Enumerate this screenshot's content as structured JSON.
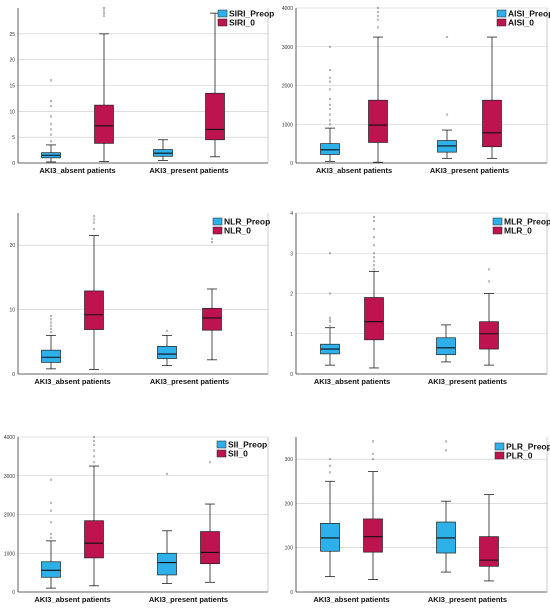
{
  "colors": {
    "preop": "#2eb0ea",
    "post": "#bd1450"
  },
  "chart_data": [
    {
      "type": "box",
      "legend": [
        "SIRI_Preop",
        "SIRI_0"
      ],
      "categories": [
        "AKI3_absent patients",
        "AKI3_present patients"
      ],
      "ylim": [
        0,
        30
      ],
      "yticks": [
        0,
        5,
        10,
        15,
        20,
        25
      ],
      "yticklabels": [
        "0",
        "5",
        "10",
        "15",
        "20",
        "25"
      ],
      "grid": true,
      "legend_position": "top-right",
      "boxes": [
        {
          "q1": 1.0,
          "median": 1.5,
          "q3": 2.0,
          "lo": 0.2,
          "hi": 3.5,
          "out": [
            4.2,
            5.5,
            6.5,
            7.5,
            9.0,
            11.0,
            12.0,
            16.0
          ]
        },
        {
          "q1": 3.8,
          "median": 7.2,
          "q3": 11.2,
          "lo": 0.3,
          "hi": 25.0,
          "out": [
            28.5,
            29.0,
            29.5,
            30.0
          ]
        },
        {
          "q1": 1.3,
          "median": 1.9,
          "q3": 2.6,
          "lo": 0.5,
          "hi": 4.5,
          "out": []
        },
        {
          "q1": 4.5,
          "median": 6.5,
          "q3": 13.5,
          "lo": 1.2,
          "hi": 29.0,
          "out": []
        }
      ]
    },
    {
      "type": "box",
      "legend": [
        "AISI_Preop",
        "AISI_0"
      ],
      "categories": [
        "AKI3_absent patients",
        "AKI3_present patients"
      ],
      "ylim": [
        0,
        4000
      ],
      "yticks": [
        0,
        1000,
        2000,
        3000,
        4000
      ],
      "yticklabels": [
        "0",
        "1000",
        "2000",
        "3000",
        "4000"
      ],
      "grid": true,
      "legend_position": "top-right",
      "boxes": [
        {
          "q1": 220,
          "median": 340,
          "q3": 500,
          "lo": 40,
          "hi": 900,
          "out": [
            1000,
            1100,
            1250,
            1400,
            1500,
            1650,
            1900,
            2100,
            2200,
            2400,
            3000
          ]
        },
        {
          "q1": 530,
          "median": 980,
          "q3": 1620,
          "lo": 20,
          "hi": 3250,
          "out": [
            3500,
            3700,
            3800,
            3900,
            4000
          ]
        },
        {
          "q1": 280,
          "median": 440,
          "q3": 580,
          "lo": 120,
          "hi": 850,
          "out": [
            1250,
            3250
          ]
        },
        {
          "q1": 420,
          "median": 780,
          "q3": 1620,
          "lo": 120,
          "hi": 3250,
          "out": []
        }
      ]
    },
    {
      "type": "box",
      "legend": [
        "NLR_Preop",
        "NLR_0"
      ],
      "categories": [
        "AKI3_absent patients",
        "AKI3_present patients"
      ],
      "ylim": [
        0,
        25
      ],
      "yticks": [
        0,
        10,
        20
      ],
      "yticklabels": [
        "0",
        "10",
        "20"
      ],
      "grid": true,
      "legend_position": "top-right",
      "boxes": [
        {
          "q1": 1.8,
          "median": 2.6,
          "q3": 3.7,
          "lo": 0.8,
          "hi": 6.0,
          "out": [
            6.5,
            7.0,
            7.5,
            8.0,
            8.5,
            9.0
          ]
        },
        {
          "q1": 6.9,
          "median": 9.2,
          "q3": 12.9,
          "lo": 0.7,
          "hi": 21.5,
          "out": [
            22.5,
            23.5,
            24.0,
            24.5
          ]
        },
        {
          "q1": 2.4,
          "median": 3.1,
          "q3": 4.3,
          "lo": 1.3,
          "hi": 6.0,
          "out": [
            6.7
          ]
        },
        {
          "q1": 6.8,
          "median": 8.7,
          "q3": 10.2,
          "lo": 2.2,
          "hi": 13.2,
          "out": [
            20.5,
            21.0
          ]
        }
      ]
    },
    {
      "type": "box",
      "legend": [
        "MLR_Preop",
        "MLR_0"
      ],
      "categories": [
        "AKI3_absent patients",
        "AKI3_present patients"
      ],
      "ylim": [
        0,
        4
      ],
      "yticks": [
        0,
        1,
        2,
        3,
        4
      ],
      "yticklabels": [
        "0",
        "1",
        "2",
        "3",
        "4"
      ],
      "grid": true,
      "legend_position": "top-right",
      "boxes": [
        {
          "q1": 0.5,
          "median": 0.62,
          "q3": 0.74,
          "lo": 0.22,
          "hi": 1.15,
          "out": [
            1.2,
            1.3,
            1.35,
            1.4,
            2.0,
            3.0
          ]
        },
        {
          "q1": 0.85,
          "median": 1.3,
          "q3": 1.9,
          "lo": 0.15,
          "hi": 2.55,
          "out": [
            2.6,
            2.7,
            2.8,
            2.9,
            3.0,
            3.2,
            3.4,
            3.6,
            3.8,
            3.9
          ]
        },
        {
          "q1": 0.48,
          "median": 0.65,
          "q3": 0.9,
          "lo": 0.3,
          "hi": 1.22,
          "out": []
        },
        {
          "q1": 0.62,
          "median": 1.0,
          "q3": 1.3,
          "lo": 0.22,
          "hi": 2.0,
          "out": [
            2.3,
            2.6
          ]
        }
      ]
    },
    {
      "type": "box",
      "legend": [
        "SII_Preop",
        "SII_0"
      ],
      "categories": [
        "AKI3_absent patients",
        "AKI3_present patients"
      ],
      "ylim": [
        0,
        4000
      ],
      "yticks": [
        0,
        1000,
        2000,
        3000,
        4000
      ],
      "yticklabels": [
        "0",
        "1000",
        "2000",
        "3000",
        "4000"
      ],
      "grid": true,
      "legend_position": "top-right",
      "boxes": [
        {
          "q1": 380,
          "median": 560,
          "q3": 780,
          "lo": 100,
          "hi": 1320,
          "out": [
            1400,
            1500,
            1800,
            2100,
            2300,
            2900
          ]
        },
        {
          "q1": 880,
          "median": 1260,
          "q3": 1840,
          "lo": 160,
          "hi": 3250,
          "out": [
            3350,
            3500,
            3650,
            3800,
            3900,
            4000
          ]
        },
        {
          "q1": 440,
          "median": 760,
          "q3": 1000,
          "lo": 220,
          "hi": 1580,
          "out": [
            3050
          ]
        },
        {
          "q1": 730,
          "median": 1020,
          "q3": 1560,
          "lo": 250,
          "hi": 2270,
          "out": [
            3350
          ]
        }
      ]
    },
    {
      "type": "box",
      "legend": [
        "PLR_Preop",
        "PLR_0"
      ],
      "categories": [
        "AKI3_absent patients",
        "AKI3_present patients"
      ],
      "ylim": [
        0,
        350
      ],
      "yticks": [
        0,
        100,
        200,
        300
      ],
      "yticklabels": [
        "0",
        "100",
        "200",
        "300"
      ],
      "grid": true,
      "legend_position": "top-right",
      "boxes": [
        {
          "q1": 92,
          "median": 122,
          "q3": 155,
          "lo": 35,
          "hi": 250,
          "out": [
            270,
            285,
            300
          ]
        },
        {
          "q1": 90,
          "median": 125,
          "q3": 165,
          "lo": 28,
          "hi": 272,
          "out": [
            300,
            312,
            340
          ]
        },
        {
          "q1": 88,
          "median": 122,
          "q3": 158,
          "lo": 45,
          "hi": 205,
          "out": [
            320,
            340
          ]
        },
        {
          "q1": 58,
          "median": 72,
          "q3": 125,
          "lo": 25,
          "hi": 220,
          "out": []
        }
      ]
    }
  ]
}
